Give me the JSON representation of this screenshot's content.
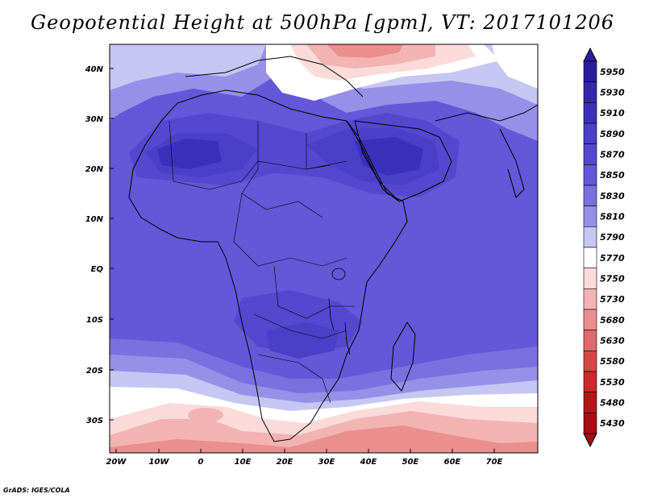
{
  "title": "Geopotential Height at 500hPa [gpm], VT: 2017101206",
  "map": {
    "variable": "Geopotential Height at 500hPa",
    "unit": "gpm",
    "valid_time": "2017101206",
    "lon_labels": [
      "20W",
      "10W",
      "0",
      "10E",
      "20E",
      "30E",
      "40E",
      "50E",
      "60E",
      "70E"
    ],
    "lat_labels": [
      "40N",
      "30N",
      "20N",
      "10N",
      "EQ",
      "10S",
      "20S",
      "30S"
    ]
  },
  "colorbar": {
    "levels": [
      "5950",
      "5930",
      "5910",
      "5890",
      "5870",
      "5850",
      "5830",
      "5810",
      "5790",
      "5770",
      "5750",
      "5730",
      "5680",
      "5630",
      "5580",
      "5530",
      "5480",
      "5430"
    ],
    "colors": [
      "#2a1e9c",
      "#3427ad",
      "#3c30bb",
      "#4a3fc6",
      "#5548cf",
      "#6457d8",
      "#7a70e0",
      "#9690e8",
      "#c6c6f3",
      "#ffffff",
      "#fbdada",
      "#f3b3b3",
      "#ea8e8e",
      "#df6a6a",
      "#d44848",
      "#c92a2a",
      "#b01818",
      "#a50f15"
    ]
  },
  "credit": "GrADS: IGES/COLA"
}
